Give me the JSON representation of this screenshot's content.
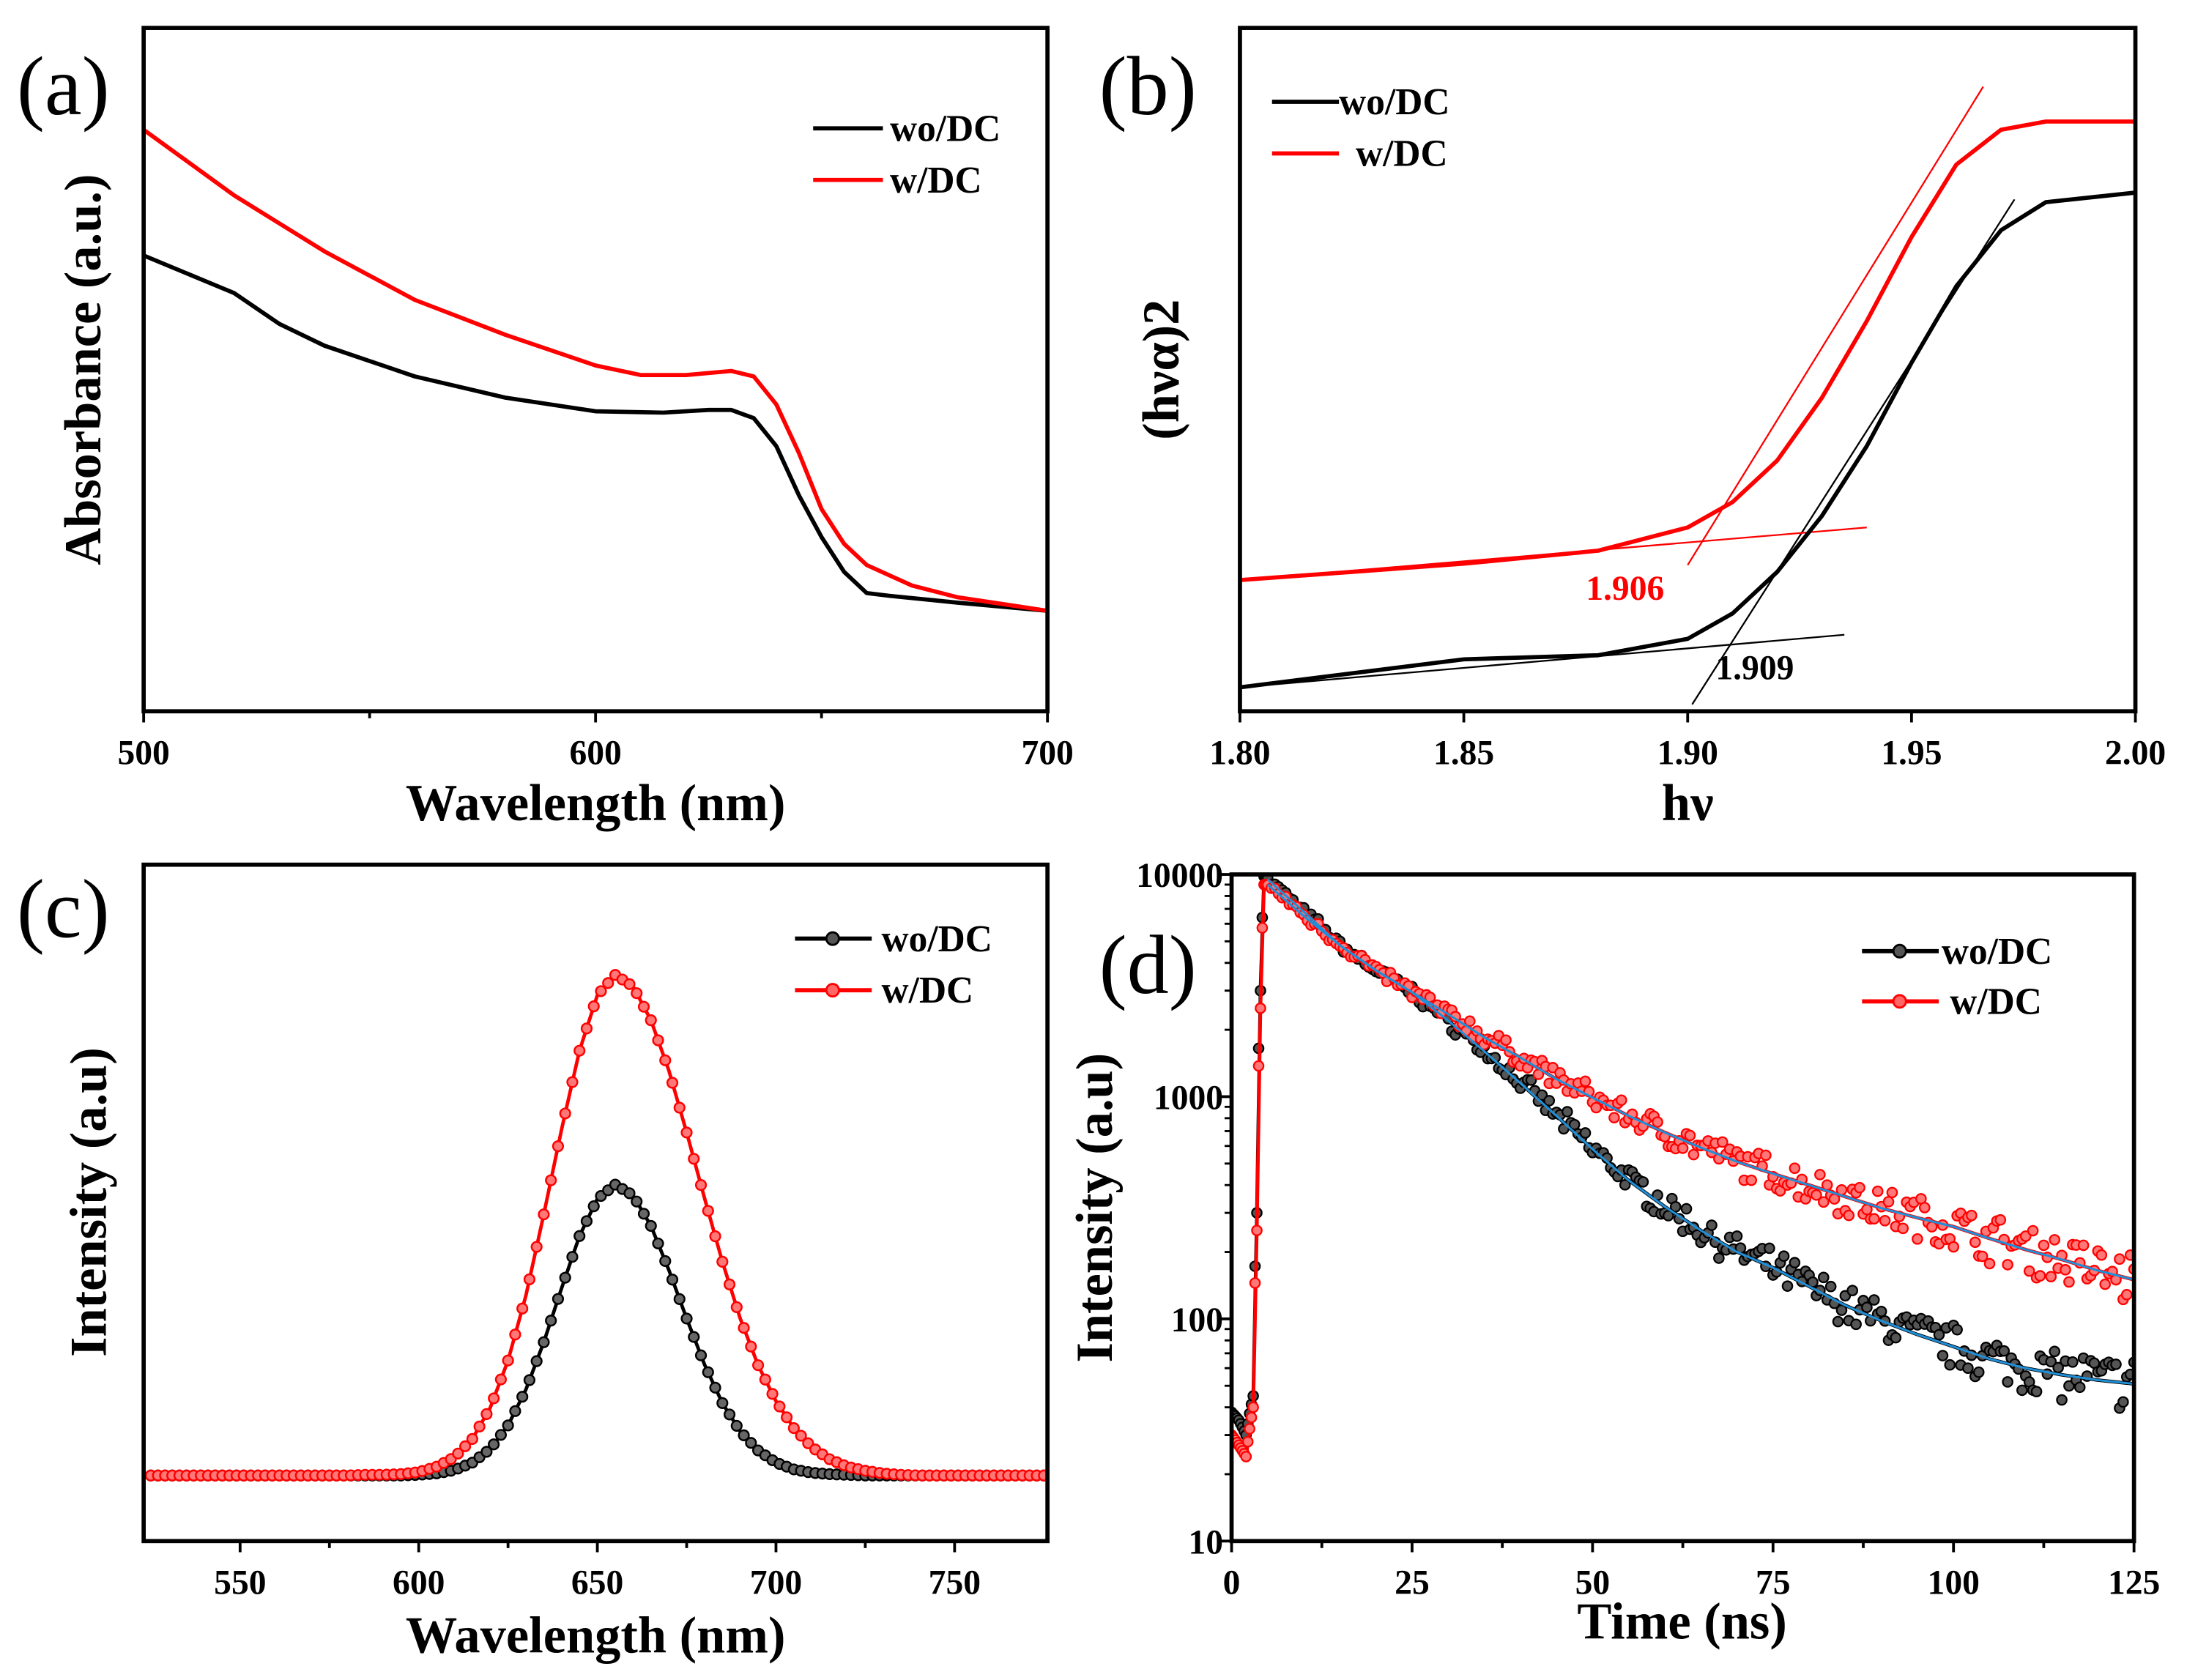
{
  "colors": {
    "wo": "#000000",
    "w": "#ff0000",
    "fit": "#1e8fd8"
  },
  "chart_data": [
    {
      "id": "a",
      "panel_label": "(a)",
      "type": "line",
      "xlabel": "Wavelength (nm)",
      "ylabel": "Absorbance (a.u.)",
      "xlim": [
        500,
        700
      ],
      "ylim": [
        0,
        1
      ],
      "xticks": [
        500,
        600,
        700
      ],
      "xminor": [
        550,
        650
      ],
      "yticks": [],
      "legend": [
        "wo/DC",
        "w/DC"
      ],
      "legend_position": "top-right",
      "series": [
        {
          "name": "wo/DC",
          "x": [
            500,
            520,
            530,
            540,
            560,
            580,
            600,
            615,
            625,
            630,
            635,
            640,
            645,
            650,
            655,
            660,
            665,
            680,
            700
          ],
          "y": [
            0.667,
            0.612,
            0.567,
            0.535,
            0.49,
            0.459,
            0.439,
            0.437,
            0.441,
            0.441,
            0.429,
            0.388,
            0.316,
            0.255,
            0.204,
            0.173,
            0.169,
            0.159,
            0.147
          ]
        },
        {
          "name": "w/DC",
          "x": [
            500,
            520,
            540,
            560,
            580,
            600,
            610,
            620,
            630,
            635,
            640,
            645,
            650,
            655,
            660,
            670,
            680,
            700
          ],
          "y": [
            0.851,
            0.755,
            0.673,
            0.602,
            0.551,
            0.506,
            0.492,
            0.492,
            0.498,
            0.49,
            0.449,
            0.378,
            0.296,
            0.245,
            0.214,
            0.184,
            0.167,
            0.147
          ]
        }
      ]
    },
    {
      "id": "b",
      "panel_label": "(b)",
      "type": "line",
      "xlabel": "hν",
      "ylabel": "(hνα)2",
      "xlim": [
        1.8,
        2.0
      ],
      "ylim": [
        0,
        1
      ],
      "xticks": [
        "1.80",
        "1.85",
        "1.90",
        "1.95",
        "2.00"
      ],
      "yticks": [],
      "legend": [
        "wo/DC",
        "w/DC"
      ],
      "legend_position": "top-left",
      "annotations": [
        {
          "text": "1.906",
          "color": "red"
        },
        {
          "text": "1.909",
          "color": "black"
        }
      ],
      "series": [
        {
          "name": "wo/DC",
          "x": [
            1.8,
            1.85,
            1.88,
            1.9,
            1.91,
            1.92,
            1.93,
            1.94,
            1.95,
            1.96,
            1.97,
            1.98,
            2.0
          ],
          "y": [
            0.035,
            0.076,
            0.082,
            0.106,
            0.143,
            0.204,
            0.286,
            0.388,
            0.51,
            0.622,
            0.704,
            0.745,
            0.759
          ]
        },
        {
          "name": "w/DC",
          "x": [
            1.8,
            1.85,
            1.88,
            1.9,
            1.91,
            1.92,
            1.93,
            1.94,
            1.95,
            1.96,
            1.97,
            1.98,
            2.0
          ],
          "y": [
            0.192,
            0.216,
            0.235,
            0.269,
            0.306,
            0.367,
            0.459,
            0.571,
            0.694,
            0.8,
            0.851,
            0.863,
            0.863
          ]
        }
      ],
      "tangents": [
        {
          "series": "wo/DC",
          "x": [
            1.8,
            1.935
          ],
          "y": [
            0.035,
            0.112
          ]
        },
        {
          "series": "wo/DC",
          "x": [
            1.901,
            1.973
          ],
          "y": [
            0.01,
            0.749
          ]
        },
        {
          "series": "w/DC",
          "x": [
            1.8,
            1.94
          ],
          "y": [
            0.192,
            0.269
          ]
        },
        {
          "series": "w/DC",
          "x": [
            1.9,
            1.966
          ],
          "y": [
            0.214,
            0.914
          ]
        }
      ]
    },
    {
      "id": "c",
      "panel_label": "(c)",
      "type": "line",
      "xlabel": "Wavelength (nm)",
      "ylabel": "Intensity (a.u)",
      "xlim": [
        523,
        776
      ],
      "ylim": [
        0,
        1
      ],
      "xticks": [
        550,
        600,
        650,
        700,
        750
      ],
      "yticks": [],
      "legend": [
        "wo/DC",
        "w/DC"
      ],
      "legend_position": "top-right",
      "x": [
        525,
        530,
        535,
        540,
        545,
        550,
        555,
        560,
        565,
        570,
        575,
        580,
        585,
        590,
        595,
        600,
        605,
        610,
        615,
        620,
        625,
        630,
        635,
        640,
        645,
        650,
        655,
        660,
        665,
        670,
        675,
        680,
        685,
        690,
        695,
        700,
        705,
        710,
        715,
        720,
        725,
        730,
        735,
        740,
        745,
        750,
        755,
        760,
        765,
        770,
        775
      ],
      "series": [
        {
          "name": "wo/DC",
          "y": [
            0.097,
            0.097,
            0.097,
            0.097,
            0.097,
            0.097,
            0.097,
            0.097,
            0.097,
            0.097,
            0.097,
            0.097,
            0.097,
            0.097,
            0.097,
            0.098,
            0.1,
            0.105,
            0.116,
            0.136,
            0.171,
            0.224,
            0.294,
            0.374,
            0.451,
            0.506,
            0.527,
            0.511,
            0.466,
            0.401,
            0.329,
            0.261,
            0.204,
            0.162,
            0.134,
            0.116,
            0.106,
            0.101,
            0.099,
            0.098,
            0.097,
            0.097,
            0.097,
            0.097,
            0.097,
            0.097,
            0.097,
            0.097,
            0.097,
            0.097,
            0.097
          ]
        },
        {
          "name": "w/DC",
          "y": [
            0.097,
            0.097,
            0.097,
            0.097,
            0.097,
            0.097,
            0.097,
            0.097,
            0.097,
            0.097,
            0.097,
            0.097,
            0.098,
            0.098,
            0.099,
            0.102,
            0.11,
            0.124,
            0.151,
            0.197,
            0.267,
            0.363,
            0.483,
            0.609,
            0.725,
            0.807,
            0.837,
            0.82,
            0.77,
            0.696,
            0.604,
            0.507,
            0.413,
            0.329,
            0.26,
            0.207,
            0.167,
            0.139,
            0.121,
            0.11,
            0.104,
            0.1,
            0.098,
            0.097,
            0.097,
            0.097,
            0.097,
            0.097,
            0.097,
            0.097,
            0.097
          ]
        }
      ]
    },
    {
      "id": "d",
      "panel_label": "(d)",
      "type": "scatter",
      "xlabel": "Time (ns)",
      "ylabel": "Intensity (a.u)",
      "xlim": [
        0,
        125
      ],
      "ylim": [
        10,
        10000
      ],
      "yscale": "log",
      "xticks": [
        0,
        25,
        50,
        75,
        100,
        125
      ],
      "yticks": [
        10,
        100,
        1000,
        10000
      ],
      "legend": [
        "wo/DC",
        "w/DC"
      ],
      "legend_position": "top-right",
      "series": [
        {
          "name": "wo/DC",
          "x": [
            0,
            1,
            2,
            3,
            3.5,
            4,
            4.5,
            5,
            10,
            15,
            20,
            25,
            30,
            35,
            40,
            45,
            50,
            55,
            60,
            65,
            70,
            75,
            80,
            85,
            90,
            95,
            100,
            105,
            110,
            115,
            120,
            125
          ],
          "y": [
            38,
            35,
            30,
            45,
            300,
            3000,
            9800,
            9500,
            6800,
            4800,
            3700,
            2950,
            2200,
            1600,
            1150,
            820,
            580,
            420,
            320,
            250,
            200,
            170,
            140,
            115,
            98,
            85,
            75,
            66,
            60,
            56,
            53,
            51
          ]
        },
        {
          "name": "w/DC",
          "x": [
            0,
            1,
            2,
            3,
            3.5,
            4,
            4.5,
            5,
            10,
            15,
            20,
            25,
            30,
            35,
            40,
            45,
            50,
            55,
            60,
            65,
            70,
            75,
            80,
            85,
            90,
            95,
            100,
            105,
            110,
            115,
            120,
            125
          ],
          "y": [
            30,
            27,
            24,
            40,
            250,
            2500,
            9000,
            9000,
            6500,
            4800,
            3700,
            2950,
            2350,
            1850,
            1500,
            1200,
            990,
            820,
            690,
            590,
            510,
            450,
            400,
            355,
            315,
            285,
            260,
            230,
            205,
            185,
            165,
            150
          ]
        }
      ]
    }
  ]
}
